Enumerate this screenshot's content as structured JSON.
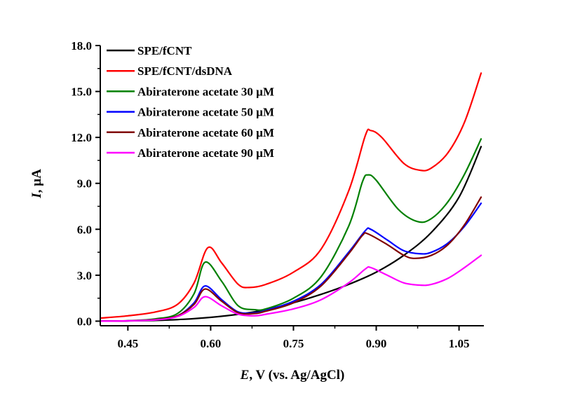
{
  "chart_data": {
    "type": "line",
    "xlabel_var": "E",
    "xlabel_rest": ", V (vs. Ag/AgCl)",
    "ylabel_var": "I",
    "ylabel_rest": ", µA",
    "xlim": [
      0.4,
      1.095
    ],
    "ylim": [
      -0.3,
      18.0
    ],
    "xticks": [
      0.45,
      0.6,
      0.75,
      0.9,
      1.05
    ],
    "xtick_labels": [
      "0.45",
      "0.60",
      "0.75",
      "0.90",
      "1.05"
    ],
    "yticks": [
      0.0,
      3.0,
      6.0,
      9.0,
      12.0,
      15.0,
      18.0
    ],
    "ytick_labels": [
      "0.0",
      "3.0",
      "6.0",
      "9.0",
      "12.0",
      "15.0",
      "18.0"
    ],
    "grid": false,
    "legend_position": "top-left",
    "series": [
      {
        "name": "SPE/fCNT",
        "color": "#000000",
        "points": [
          [
            0.4,
            0.0
          ],
          [
            0.45,
            0.02
          ],
          [
            0.5,
            0.05
          ],
          [
            0.55,
            0.12
          ],
          [
            0.6,
            0.25
          ],
          [
            0.65,
            0.45
          ],
          [
            0.7,
            0.75
          ],
          [
            0.75,
            1.2
          ],
          [
            0.8,
            1.75
          ],
          [
            0.85,
            2.4
          ],
          [
            0.9,
            3.2
          ],
          [
            0.95,
            4.3
          ],
          [
            1.0,
            5.8
          ],
          [
            1.05,
            8.1
          ],
          [
            1.09,
            11.4
          ]
        ]
      },
      {
        "name": "SPE/fCNT/dsDNA",
        "color": "#ff0000",
        "points": [
          [
            0.4,
            0.2
          ],
          [
            0.45,
            0.35
          ],
          [
            0.5,
            0.6
          ],
          [
            0.54,
            1.1
          ],
          [
            0.57,
            2.5
          ],
          [
            0.595,
            4.8
          ],
          [
            0.62,
            3.8
          ],
          [
            0.65,
            2.4
          ],
          [
            0.67,
            2.2
          ],
          [
            0.7,
            2.4
          ],
          [
            0.75,
            3.2
          ],
          [
            0.8,
            4.7
          ],
          [
            0.85,
            8.5
          ],
          [
            0.88,
            12.1
          ],
          [
            0.89,
            12.45
          ],
          [
            0.91,
            12.0
          ],
          [
            0.95,
            10.3
          ],
          [
            0.98,
            9.85
          ],
          [
            1.0,
            10.0
          ],
          [
            1.03,
            11.0
          ],
          [
            1.06,
            13.0
          ],
          [
            1.09,
            16.2
          ]
        ]
      },
      {
        "name": "Abiraterone acetate 30 µM",
        "color": "#008000",
        "points": [
          [
            0.4,
            0.0
          ],
          [
            0.45,
            0.03
          ],
          [
            0.5,
            0.15
          ],
          [
            0.54,
            0.5
          ],
          [
            0.57,
            1.8
          ],
          [
            0.59,
            3.85
          ],
          [
            0.62,
            2.6
          ],
          [
            0.65,
            1.0
          ],
          [
            0.68,
            0.75
          ],
          [
            0.7,
            0.8
          ],
          [
            0.75,
            1.5
          ],
          [
            0.8,
            2.9
          ],
          [
            0.85,
            6.2
          ],
          [
            0.875,
            9.1
          ],
          [
            0.885,
            9.55
          ],
          [
            0.9,
            9.2
          ],
          [
            0.94,
            7.3
          ],
          [
            0.975,
            6.5
          ],
          [
            1.0,
            6.7
          ],
          [
            1.03,
            7.8
          ],
          [
            1.06,
            9.6
          ],
          [
            1.09,
            11.9
          ]
        ]
      },
      {
        "name": "Abiraterone acetate 50 µM",
        "color": "#0000ff",
        "points": [
          [
            0.4,
            0.0
          ],
          [
            0.45,
            0.02
          ],
          [
            0.5,
            0.1
          ],
          [
            0.54,
            0.35
          ],
          [
            0.57,
            1.2
          ],
          [
            0.59,
            2.3
          ],
          [
            0.62,
            1.4
          ],
          [
            0.65,
            0.6
          ],
          [
            0.68,
            0.55
          ],
          [
            0.7,
            0.7
          ],
          [
            0.75,
            1.3
          ],
          [
            0.8,
            2.4
          ],
          [
            0.85,
            4.5
          ],
          [
            0.88,
            5.9
          ],
          [
            0.89,
            6.0
          ],
          [
            0.92,
            5.3
          ],
          [
            0.95,
            4.6
          ],
          [
            0.98,
            4.4
          ],
          [
            1.0,
            4.5
          ],
          [
            1.03,
            5.1
          ],
          [
            1.06,
            6.2
          ],
          [
            1.09,
            7.7
          ]
        ]
      },
      {
        "name": "Abiraterone acetate 60 µM",
        "color": "#800000",
        "points": [
          [
            0.4,
            0.0
          ],
          [
            0.45,
            0.02
          ],
          [
            0.5,
            0.1
          ],
          [
            0.54,
            0.35
          ],
          [
            0.57,
            1.1
          ],
          [
            0.59,
            2.1
          ],
          [
            0.62,
            1.3
          ],
          [
            0.65,
            0.55
          ],
          [
            0.68,
            0.5
          ],
          [
            0.7,
            0.65
          ],
          [
            0.75,
            1.2
          ],
          [
            0.8,
            2.3
          ],
          [
            0.85,
            4.4
          ],
          [
            0.875,
            5.6
          ],
          [
            0.885,
            5.7
          ],
          [
            0.92,
            5.0
          ],
          [
            0.95,
            4.3
          ],
          [
            0.97,
            4.1
          ],
          [
            1.0,
            4.3
          ],
          [
            1.03,
            5.0
          ],
          [
            1.06,
            6.3
          ],
          [
            1.09,
            8.1
          ]
        ]
      },
      {
        "name": "Abiraterone acetate 90 µM",
        "color": "#ff00ff",
        "points": [
          [
            0.4,
            0.0
          ],
          [
            0.45,
            0.02
          ],
          [
            0.5,
            0.08
          ],
          [
            0.54,
            0.3
          ],
          [
            0.57,
            0.9
          ],
          [
            0.59,
            1.6
          ],
          [
            0.62,
            1.0
          ],
          [
            0.65,
            0.45
          ],
          [
            0.68,
            0.35
          ],
          [
            0.7,
            0.45
          ],
          [
            0.75,
            0.8
          ],
          [
            0.8,
            1.4
          ],
          [
            0.85,
            2.5
          ],
          [
            0.88,
            3.4
          ],
          [
            0.89,
            3.5
          ],
          [
            0.92,
            3.0
          ],
          [
            0.95,
            2.5
          ],
          [
            0.98,
            2.35
          ],
          [
            1.0,
            2.4
          ],
          [
            1.03,
            2.8
          ],
          [
            1.06,
            3.5
          ],
          [
            1.09,
            4.3
          ]
        ]
      }
    ]
  }
}
